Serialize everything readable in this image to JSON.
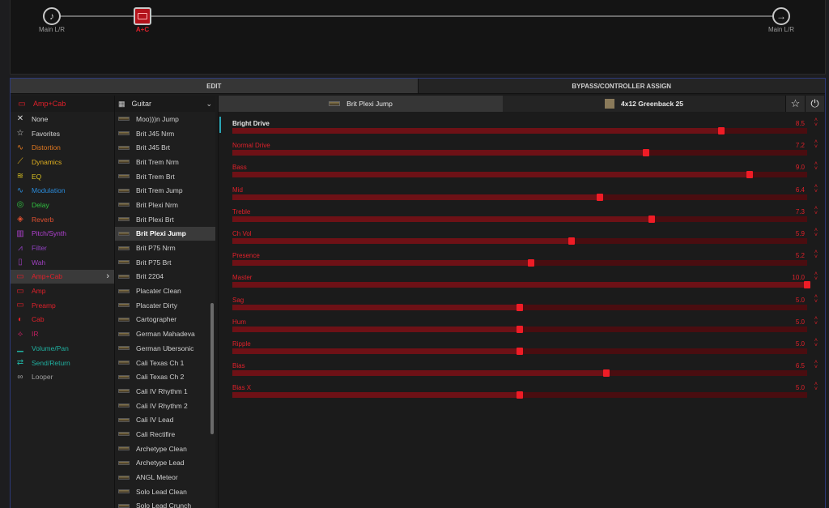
{
  "chain": {
    "input_label": "Main L/R",
    "block_label": "A+C",
    "output_label": "Main L/R"
  },
  "tabs": [
    {
      "label": "EDIT",
      "active": true
    },
    {
      "label": "BYPASS/CONTROLLER ASSIGN",
      "active": false
    }
  ],
  "category_header": "Amp+Cab",
  "categories": [
    {
      "label": "None",
      "icon": "close-icon",
      "color": "#d6d6d6"
    },
    {
      "label": "Favorites",
      "icon": "star-icon",
      "color": "#d6d6d6"
    },
    {
      "label": "Distortion",
      "icon": "distortion-icon",
      "color": "#e07820"
    },
    {
      "label": "Dynamics",
      "icon": "dynamics-icon",
      "color": "#e0b020"
    },
    {
      "label": "EQ",
      "icon": "eq-icon",
      "color": "#d8c020"
    },
    {
      "label": "Modulation",
      "icon": "modulation-icon",
      "color": "#2a8ad8"
    },
    {
      "label": "Delay",
      "icon": "delay-icon",
      "color": "#30c040"
    },
    {
      "label": "Reverb",
      "icon": "reverb-icon",
      "color": "#e05030"
    },
    {
      "label": "Pitch/Synth",
      "icon": "pitch-icon",
      "color": "#b040d0"
    },
    {
      "label": "Filter",
      "icon": "filter-icon",
      "color": "#9040c0"
    },
    {
      "label": "Wah",
      "icon": "wah-icon",
      "color": "#a040c0"
    },
    {
      "label": "Amp+Cab",
      "icon": "amp-cab-icon",
      "color": "#e0202a",
      "selected": true
    },
    {
      "label": "Amp",
      "icon": "amp-icon",
      "color": "#e0202a"
    },
    {
      "label": "Preamp",
      "icon": "preamp-icon",
      "color": "#e0202a"
    },
    {
      "label": "Cab",
      "icon": "cab-icon",
      "color": "#e0202a"
    },
    {
      "label": "IR",
      "icon": "ir-icon",
      "color": "#c02060"
    },
    {
      "label": "Volume/Pan",
      "icon": "volume-icon",
      "color": "#20b0a0"
    },
    {
      "label": "Send/Return",
      "icon": "send-return-icon",
      "color": "#20b0a0"
    },
    {
      "label": "Looper",
      "icon": "looper-icon",
      "color": "#a0a0a0"
    }
  ],
  "model_header": "Guitar",
  "models": [
    "Moo)))n Jump",
    "Brit J45 Nrm",
    "Brit J45 Brt",
    "Brit Trem Nrm",
    "Brit Trem Brt",
    "Brit Trem Jump",
    "Brit Plexi Nrm",
    "Brit Plexi Brt",
    "Brit Plexi Jump",
    "Brit P75 Nrm",
    "Brit P75 Brt",
    "Brit 2204",
    "Placater Clean",
    "Placater Dirty",
    "Cartographer",
    "German Mahadeva",
    "German Ubersonic",
    "Cali Texas Ch 1",
    "Cali Texas Ch 2",
    "Cali IV Rhythm 1",
    "Cali IV Rhythm 2",
    "Cali IV Lead",
    "Cali Rectifire",
    "Archetype Clean",
    "Archetype Lead",
    "ANGL Meteor",
    "Solo Lead Clean",
    "Solo Lead Crunch"
  ],
  "selected_model_index": 8,
  "amp_tab_label": "Brit Plexi Jump",
  "cab_tab_label": "4x12 Greenback 25",
  "params": [
    {
      "name": "Bright Drive",
      "value": "8.5",
      "fraction": 0.85
    },
    {
      "name": "Normal Drive",
      "value": "7.2",
      "fraction": 0.72
    },
    {
      "name": "Bass",
      "value": "9.0",
      "fraction": 0.9
    },
    {
      "name": "Mid",
      "value": "6.4",
      "fraction": 0.64
    },
    {
      "name": "Treble",
      "value": "7.3",
      "fraction": 0.73
    },
    {
      "name": "Ch Vol",
      "value": "5.9",
      "fraction": 0.59
    },
    {
      "name": "Presence",
      "value": "5.2",
      "fraction": 0.52
    },
    {
      "name": "Master",
      "value": "10.0",
      "fraction": 1.0
    },
    {
      "name": "Sag",
      "value": "5.0",
      "fraction": 0.5
    },
    {
      "name": "Hum",
      "value": "5.0",
      "fraction": 0.5
    },
    {
      "name": "Ripple",
      "value": "5.0",
      "fraction": 0.5
    },
    {
      "name": "Bias",
      "value": "6.5",
      "fraction": 0.65
    },
    {
      "name": "Bias X",
      "value": "5.0",
      "fraction": 0.5
    }
  ]
}
